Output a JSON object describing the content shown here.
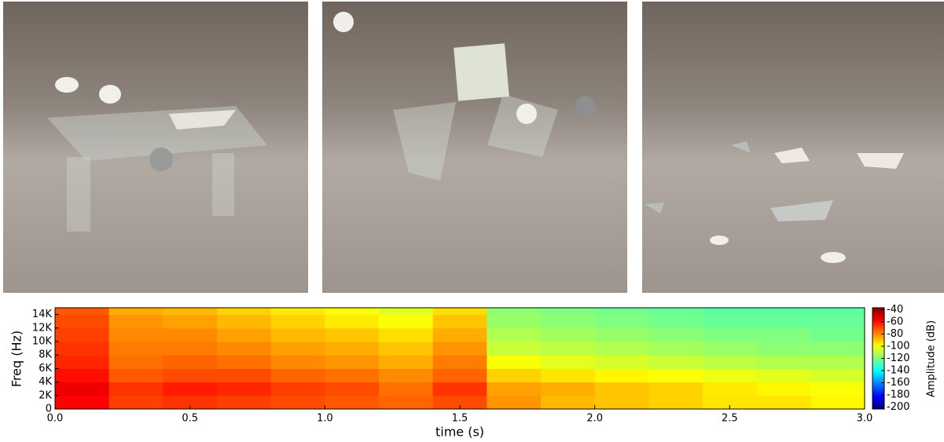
{
  "chart_data": {
    "type": "spectrogram",
    "xlabel": "time (s)",
    "ylabel": "Freq (Hz)",
    "xlim": [
      0,
      3.0
    ],
    "xticks": [
      {
        "value": 0,
        "label": "0.0"
      },
      {
        "value": 0.5,
        "label": "0.5"
      },
      {
        "value": 1.0,
        "label": "1.0"
      },
      {
        "value": 1.5,
        "label": "1.5"
      },
      {
        "value": 2.0,
        "label": "2.0"
      },
      {
        "value": 2.5,
        "label": "2.5"
      },
      {
        "value": 3.0,
        "label": "3.0"
      }
    ],
    "ylim": [
      0,
      15000
    ],
    "yticks": [
      0,
      {
        "value": 2000,
        "label": "2K"
      },
      {
        "value": 4000,
        "label": "4K"
      },
      {
        "value": 6000,
        "label": "6K"
      },
      {
        "value": 8000,
        "label": "8K"
      },
      {
        "value": 10000,
        "label": "10K"
      },
      {
        "value": 12000,
        "label": "12K"
      },
      {
        "value": 14000,
        "label": "14K"
      }
    ],
    "x_bins": [
      0,
      0.2,
      0.4,
      0.6,
      0.8,
      1.0,
      1.2,
      1.4,
      1.6,
      1.8,
      2.0,
      2.2,
      2.4,
      2.6,
      2.8,
      3.0
    ],
    "y_bins": [
      0,
      2000,
      4000,
      6000,
      8000,
      10000,
      12000,
      14000,
      15000
    ],
    "values": [
      [
        -58,
        -68,
        -66,
        -68,
        -70,
        -72,
        -74,
        -70,
        -82,
        -88,
        -90,
        -92,
        -95,
        -95,
        -98
      ],
      [
        -55,
        -66,
        -62,
        -64,
        -68,
        -70,
        -76,
        -66,
        -84,
        -86,
        -90,
        -92,
        -96,
        -98,
        -100
      ],
      [
        -60,
        -72,
        -70,
        -70,
        -74,
        -76,
        -80,
        -74,
        -92,
        -95,
        -98,
        -100,
        -102,
        -104,
        -106
      ],
      [
        -64,
        -76,
        -74,
        -76,
        -80,
        -82,
        -86,
        -78,
        -100,
        -104,
        -106,
        -108,
        -110,
        -112,
        -112
      ],
      [
        -66,
        -78,
        -78,
        -80,
        -84,
        -86,
        -90,
        -82,
        -108,
        -110,
        -112,
        -114,
        -116,
        -118,
        -118
      ],
      [
        -68,
        -80,
        -80,
        -84,
        -88,
        -90,
        -94,
        -86,
        -112,
        -114,
        -116,
        -118,
        -120,
        -120,
        -122
      ],
      [
        -70,
        -82,
        -84,
        -88,
        -92,
        -96,
        -100,
        -90,
        -116,
        -118,
        -120,
        -122,
        -124,
        -124,
        -124
      ],
      [
        -72,
        -86,
        -88,
        -92,
        -96,
        -100,
        -104,
        -94,
        -118,
        -120,
        -122,
        -124,
        -126,
        -126,
        -126
      ]
    ],
    "colormap": "jet",
    "colorbar": {
      "label": "Amplitude (dB)",
      "lim": [
        -203,
        -37
      ],
      "ticks": [
        -40,
        -60,
        -80,
        -100,
        -120,
        -140,
        -160,
        -180,
        -200
      ]
    }
  }
}
